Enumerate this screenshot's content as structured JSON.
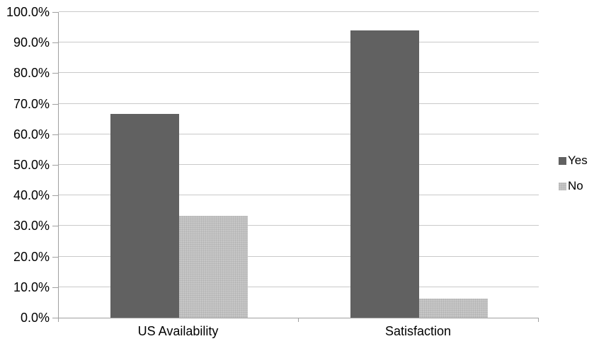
{
  "chart_data": {
    "type": "bar",
    "title": "",
    "xlabel": "",
    "ylabel": "",
    "categories": [
      "US Availability",
      "Satisfaction"
    ],
    "series": [
      {
        "name": "Yes",
        "values": [
          66.7,
          94.0
        ],
        "color": "#616161",
        "texture": "solid"
      },
      {
        "name": "No",
        "values": [
          33.3,
          6.2
        ],
        "color": "#c7c7c7",
        "texture": "dotted"
      }
    ],
    "ylim": [
      0,
      100
    ],
    "ytick_values": [
      0,
      10,
      20,
      30,
      40,
      50,
      60,
      70,
      80,
      90,
      100
    ],
    "ytick_labels": [
      "0.0%",
      "10.0%",
      "20.0%",
      "30.0%",
      "40.0%",
      "50.0%",
      "60.0%",
      "70.0%",
      "80.0%",
      "90.0%",
      "100.0%"
    ],
    "grid": true,
    "legend_position": "right",
    "colors": {
      "grid": "#c9c9c9",
      "axis": "#a0a0a0",
      "text": "#000000",
      "background": "#ffffff"
    }
  }
}
